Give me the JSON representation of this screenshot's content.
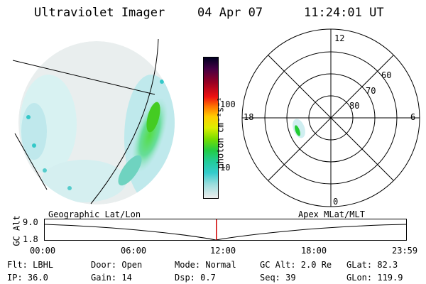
{
  "header": {
    "instrument": "Ultraviolet Imager",
    "date": "04 Apr 07",
    "time": "11:24:01 UT"
  },
  "colorbar": {
    "unit_label": "photon cm⁻²s⁻¹",
    "ticks": [
      "100",
      "10"
    ]
  },
  "polar_plot": {
    "mlt_labels": {
      "top": "12",
      "left": "18",
      "right": "6",
      "bottom": "0"
    },
    "lat_labels": [
      "60",
      "70",
      "80"
    ]
  },
  "timeline": {
    "left_title": "Geographic Lat/Lon",
    "right_title": "Apex MLat/MLT",
    "y_label": "GC Alt",
    "y_ticks": [
      "9.0",
      "1.8"
    ],
    "x_ticks": [
      "00:00",
      "06:00",
      "12:00",
      "18:00",
      "23:59"
    ],
    "current_time_fraction": 0.475
  },
  "info": {
    "flt": "Flt: LBHL",
    "ip": "IP: 36.0",
    "door": "Door: Open",
    "gain": "Gain: 14",
    "mode": "Mode: Normal",
    "dsp": "Dsp:    0.7",
    "gc_alt": "GC Alt: 2.0 Re",
    "seq": "Seq: 39",
    "glat": "GLat:  82.3",
    "glon": "GLon: 119.9"
  },
  "colors": {
    "marker": "#d00000",
    "aurora_green": "#22cc33",
    "aurora_cyan": "#33cccc"
  }
}
